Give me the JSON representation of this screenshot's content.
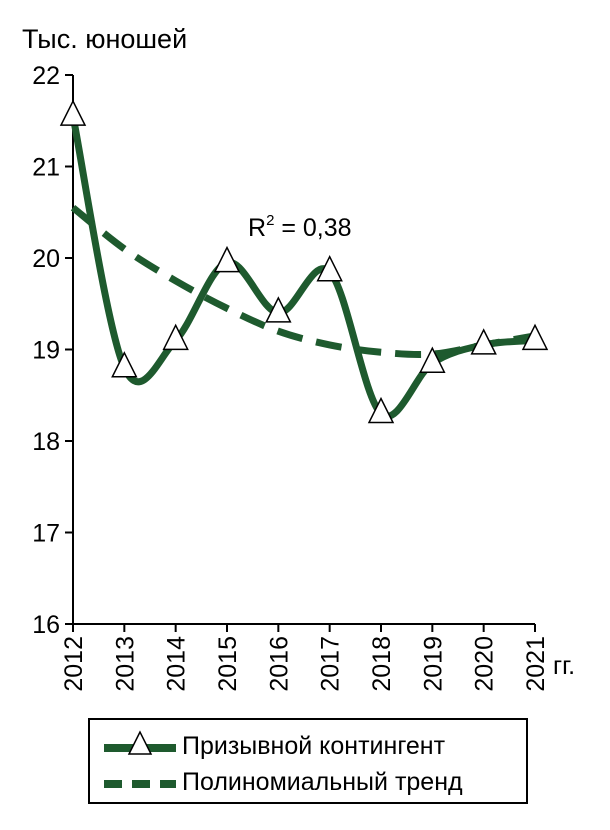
{
  "chart_data": {
    "type": "line",
    "ylabel": "Тыс. юношей",
    "x_unit": "гг.",
    "categories": [
      "2012",
      "2013",
      "2014",
      "2015",
      "2016",
      "2017",
      "2018",
      "2019",
      "2020",
      "2021"
    ],
    "ylim": [
      16,
      22
    ],
    "yticks": [
      "16",
      "17",
      "18",
      "19",
      "20",
      "21",
      "22"
    ],
    "series": [
      {
        "name": "Призывной контингент",
        "style": "solid",
        "marker": "triangle-open",
        "values": [
          21.55,
          18.8,
          19.1,
          19.95,
          19.4,
          19.85,
          18.3,
          18.85,
          19.05,
          19.1
        ]
      },
      {
        "name": "Полиномиальный тренд",
        "style": "dashed",
        "marker": "none",
        "values": [
          20.55,
          20.1,
          19.75,
          19.45,
          19.2,
          19.05,
          18.97,
          18.95,
          19.05,
          19.15
        ]
      }
    ],
    "annotation": {
      "label": "R",
      "sup": "2",
      "value": " = 0,38"
    },
    "grid": false,
    "legend": "bottom",
    "colors": {
      "line": "#1e5a2e",
      "marker_fill": "#ffffff",
      "axis": "#000000"
    }
  }
}
